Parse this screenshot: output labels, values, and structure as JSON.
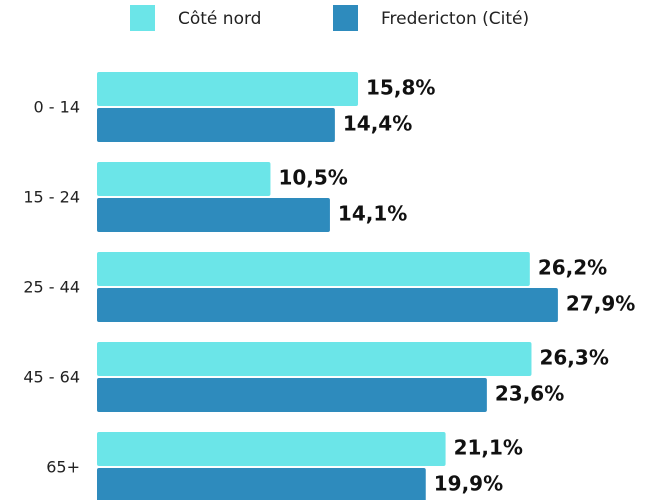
{
  "chart_data": {
    "type": "bar",
    "orientation": "horizontal",
    "categories": [
      "0 - 14",
      "15 - 24",
      "25 - 44",
      "45 - 64",
      "65+"
    ],
    "series": [
      {
        "name": "Côté nord",
        "color": "#6be5e8",
        "values": [
          15.8,
          10.5,
          26.2,
          26.3,
          21.1
        ],
        "value_labels": [
          "15,8%",
          "10,5%",
          "26,2%",
          "26,3%",
          "21,1%"
        ]
      },
      {
        "name": "Fredericton (Cité)",
        "color": "#2e8bbd",
        "values": [
          14.4,
          14.1,
          27.9,
          23.6,
          19.9
        ],
        "value_labels": [
          "14,4%",
          "14,1%",
          "27,9%",
          "23,6%",
          "19,9%"
        ]
      }
    ],
    "legend": "top"
  }
}
